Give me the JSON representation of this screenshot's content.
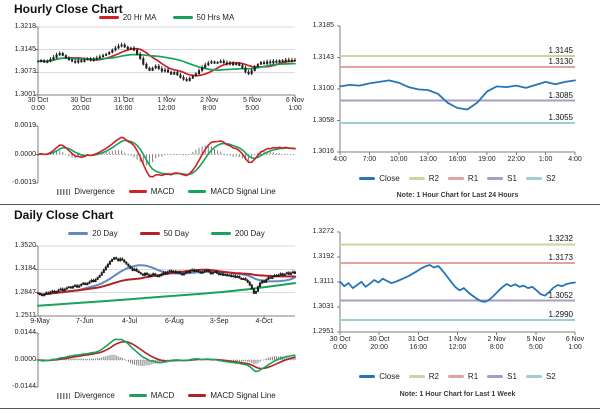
{
  "texts": {
    "hourly_title": "Hourly Close Chart",
    "daily_title": "Daily Close Chart"
  },
  "colors": {
    "red": "#cf2128",
    "green": "#17a35b",
    "steel_blue": "#6189bd",
    "dark_red": "#b42025",
    "close_blue": "#2575b8",
    "r2_green": "#c6d7a2",
    "r1_pink": "#e0a3a0",
    "s1_purple": "#a79fc0",
    "s2_cyan": "#9ccdd8",
    "divergence_gray": "#7f7f7f",
    "candle_black": "#1c1c1c"
  },
  "chart_data": [
    {
      "id": "hourly_main",
      "type": "candlestick",
      "title": "Hourly Close Chart",
      "y_ticks": [
        "1.3218",
        "1.3145",
        "1.3073",
        "1.3001"
      ],
      "x_tick_labels": [
        [
          "30 Oct",
          "0:00"
        ],
        [
          "30 Oct",
          "20:00"
        ],
        [
          "31 Oct",
          "16:00"
        ],
        [
          "1 Nov",
          "12:00"
        ],
        [
          "2 Nov",
          "8:00"
        ],
        [
          "5 Nov",
          "5:00"
        ],
        [
          "6 Nov",
          "1:00"
        ]
      ],
      "ylim": [
        1.3001,
        1.3218
      ],
      "wick": 0.0012,
      "close": [
        1.3108,
        1.3112,
        1.3106,
        1.311,
        1.3116,
        1.3122,
        1.313,
        1.3135,
        1.3128,
        1.312,
        1.3114,
        1.311,
        1.3106,
        1.3112,
        1.3108,
        1.3114,
        1.3118,
        1.3112,
        1.3116,
        1.312,
        1.3124,
        1.3128,
        1.3132,
        1.3138,
        1.3145,
        1.3152,
        1.3158,
        1.3162,
        1.3155,
        1.3148,
        1.3152,
        1.3145,
        1.3132,
        1.3118,
        1.31,
        1.3088,
        1.308,
        1.3088,
        1.3094,
        1.3086,
        1.3078,
        1.3082,
        1.3075,
        1.3068,
        1.3074,
        1.3066,
        1.3058,
        1.3052,
        1.3048,
        1.3055,
        1.3062,
        1.307,
        1.308,
        1.309,
        1.3098,
        1.3104,
        1.3108,
        1.3103,
        1.3106,
        1.311,
        1.3105,
        1.31,
        1.3104,
        1.3098,
        1.3102,
        1.3096,
        1.3088,
        1.3075,
        1.307,
        1.308,
        1.3092,
        1.31,
        1.3106,
        1.3102,
        1.3108,
        1.3104,
        1.311,
        1.3106,
        1.3112,
        1.3108,
        1.3114,
        1.311,
        1.3113,
        1.3112
      ],
      "ma": [
        {
          "name": "20 Hr MA",
          "window": 10,
          "color": "#cf2128"
        },
        {
          "name": "50 Hrs MA",
          "window": 25,
          "color": "#17a35b"
        }
      ],
      "legend": [
        {
          "label": "20 Hr MA",
          "color": "#cf2128"
        },
        {
          "label": "50 Hrs MA",
          "color": "#17a35b"
        }
      ]
    },
    {
      "id": "hourly_macd",
      "type": "macd",
      "source": "hourly_main",
      "y_ticks": [
        "0.0019",
        "0.0000",
        "-0.0019"
      ],
      "fast": 6,
      "slow": 13,
      "signal": 5,
      "macd_color": "#cf2128",
      "signal_color": "#17a35b",
      "divergence_color": "#7f7f7f",
      "legend": [
        {
          "label": "Divergence",
          "color": "#7f7f7f",
          "swatch": "bars"
        },
        {
          "label": "MACD",
          "color": "#cf2128"
        },
        {
          "label": "MACD Signal Line",
          "color": "#17a35b"
        }
      ]
    },
    {
      "id": "hourly_sr",
      "type": "line",
      "y_ticks": [
        "1.3185",
        "1.3143",
        "1.3100",
        "1.3058",
        "1.3016"
      ],
      "ylim": [
        1.3016,
        1.3185
      ],
      "x_tick_labels": [
        "4:00",
        "7:00",
        "10:00",
        "13:00",
        "16:00",
        "19:00",
        "22:00",
        "1:00",
        "4:00"
      ],
      "close_color": "#2575b8",
      "close": [
        1.3104,
        1.3106,
        1.3105,
        1.3108,
        1.311,
        1.3112,
        1.3109,
        1.3103,
        1.31,
        1.3099,
        1.3094,
        1.3082,
        1.3075,
        1.3073,
        1.3082,
        1.3097,
        1.3104,
        1.3103,
        1.3105,
        1.3102,
        1.3106,
        1.311,
        1.3107,
        1.311,
        1.3112
      ],
      "levels": [
        {
          "name": "R2",
          "value": 1.3145,
          "label": "1.3145",
          "color": "#c6d7a2"
        },
        {
          "name": "R1",
          "value": 1.313,
          "label": "1.3130",
          "color": "#e0a3a0"
        },
        {
          "name": "S1",
          "value": 1.3085,
          "label": "1.3085",
          "color": "#a79fc0"
        },
        {
          "name": "S2",
          "value": 1.3055,
          "label": "1.3055",
          "color": "#9ccdd8"
        }
      ],
      "legend": [
        {
          "label": "Close",
          "color": "#2575b8"
        },
        {
          "label": "R2",
          "color": "#c6d7a2"
        },
        {
          "label": "R1",
          "color": "#e0a3a0"
        },
        {
          "label": "S1",
          "color": "#a79fc0"
        },
        {
          "label": "S2",
          "color": "#9ccdd8"
        }
      ],
      "note": "Note: 1 Hour Chart for Last 24 Hours"
    },
    {
      "id": "daily_main",
      "type": "candlestick",
      "title": "Daily Close Chart",
      "y_ticks": [
        "1.3520",
        "1.3184",
        "1.2847",
        "1.2511"
      ],
      "x_tick_labels": [
        "9-May",
        "7-Jun",
        "4-Jul",
        "6-Aug",
        "3-Sep",
        "4-Oct"
      ],
      "ylim": [
        1.2511,
        1.352
      ],
      "wick": 0.0032,
      "close": [
        1.284,
        1.282,
        1.2805,
        1.2825,
        1.285,
        1.2835,
        1.286,
        1.2875,
        1.2855,
        1.287,
        1.289,
        1.2905,
        1.288,
        1.29,
        1.292,
        1.2935,
        1.2915,
        1.294,
        1.2955,
        1.293,
        1.295,
        1.297,
        1.299,
        1.2965,
        1.2985,
        1.3005,
        1.303,
        1.301,
        1.304,
        1.307,
        1.31,
        1.314,
        1.318,
        1.322,
        1.326,
        1.33,
        1.333,
        1.3355,
        1.3335,
        1.331,
        1.334,
        1.332,
        1.329,
        1.326,
        1.323,
        1.32,
        1.317,
        1.319,
        1.316,
        1.314,
        1.312,
        1.31,
        1.313,
        1.311,
        1.3085,
        1.3105,
        1.3125,
        1.31,
        1.308,
        1.3095,
        1.3115,
        1.314,
        1.312,
        1.315,
        1.317,
        1.3145,
        1.316,
        1.3135,
        1.315,
        1.3125,
        1.3105,
        1.313,
        1.3155,
        1.314,
        1.3165,
        1.318,
        1.3155,
        1.317,
        1.315,
        1.313,
        1.3145,
        1.316,
        1.3175,
        1.315,
        1.312,
        1.314,
        1.3155,
        1.313,
        1.311,
        1.3125,
        1.31,
        1.3115,
        1.309,
        1.3105,
        1.308,
        1.3095,
        1.307,
        1.3085,
        1.306,
        1.304,
        1.3055,
        1.303,
        1.3,
        1.296,
        1.2905,
        1.284,
        1.287,
        1.294,
        1.299,
        1.302,
        1.3,
        1.304,
        1.307,
        1.3055,
        1.308,
        1.31,
        1.3085,
        1.3105,
        1.3125,
        1.31,
        1.312,
        1.314,
        1.3115,
        1.3135,
        1.315,
        1.3128
      ],
      "ma": [
        {
          "name": "20 Day",
          "window": 20,
          "color": "#6189bd"
        },
        {
          "name": "50 Day",
          "window": 50,
          "color": "#b42025"
        }
      ],
      "ma200": {
        "name": "200 Day",
        "color": "#17a35b",
        "values": [
          1.266,
          1.2682,
          1.2705,
          1.2729,
          1.2754,
          1.278,
          1.2806,
          1.2833,
          1.2861,
          1.2896,
          1.294,
          1.2985
        ]
      },
      "legend": [
        {
          "label": "20 Day",
          "color": "#6189bd"
        },
        {
          "label": "50 Day",
          "color": "#b42025"
        },
        {
          "label": "200 Day",
          "color": "#17a35b"
        }
      ]
    },
    {
      "id": "daily_macd",
      "type": "macd",
      "source": "daily_main",
      "y_ticks": [
        "0.0144",
        "0.0000",
        "-0.0144"
      ],
      "fast": 12,
      "slow": 26,
      "signal": 9,
      "macd_color": "#17a35b",
      "signal_color": "#b42025",
      "divergence_color": "#7f7f7f",
      "legend": [
        {
          "label": "Divergence",
          "color": "#7f7f7f",
          "swatch": "bars"
        },
        {
          "label": "MACD",
          "color": "#17a35b"
        },
        {
          "label": "MACD Signal Line",
          "color": "#b42025"
        }
      ]
    },
    {
      "id": "daily_sr",
      "type": "line",
      "y_ticks": [
        "1.3272",
        "1.3192",
        "1.3111",
        "1.3031",
        "1.2951"
      ],
      "ylim": [
        1.2951,
        1.3272
      ],
      "x_tick_labels": [
        [
          "30 Oct",
          "0:00"
        ],
        [
          "30 Oct",
          "20:00"
        ],
        [
          "31 Oct",
          "16:00"
        ],
        [
          "1 Nov",
          "12:00"
        ],
        [
          "2 Nov",
          "8:00"
        ],
        [
          "5 Nov",
          "5:00"
        ],
        [
          "6 Nov",
          "1:00"
        ]
      ],
      "close_color": "#2575b8",
      "close": [
        1.3112,
        1.3098,
        1.3108,
        1.3092,
        1.3102,
        1.3112,
        1.3096,
        1.3106,
        1.3118,
        1.311,
        1.3122,
        1.3115,
        1.3108,
        1.3112,
        1.3118,
        1.3124,
        1.313,
        1.3138,
        1.3146,
        1.3155,
        1.3162,
        1.3166,
        1.3158,
        1.3163,
        1.3148,
        1.313,
        1.3112,
        1.3095,
        1.3085,
        1.3092,
        1.3078,
        1.3068,
        1.3058,
        1.305,
        1.3048,
        1.3055,
        1.3068,
        1.3082,
        1.3095,
        1.3105,
        1.3098,
        1.3104,
        1.3096,
        1.31,
        1.3092,
        1.3096,
        1.3085,
        1.3072,
        1.3068,
        1.308,
        1.3094,
        1.3102,
        1.3098,
        1.3105,
        1.3108,
        1.311
      ],
      "levels": [
        {
          "name": "R2",
          "value": 1.3232,
          "label": "1.3232",
          "color": "#c6d7a2"
        },
        {
          "name": "R1",
          "value": 1.3173,
          "label": "1.3173",
          "color": "#e0a3a0"
        },
        {
          "name": "S1",
          "value": 1.3052,
          "label": "1.3052",
          "color": "#a79fc0"
        },
        {
          "name": "S2",
          "value": 1.299,
          "label": "1.2990",
          "color": "#9ccdd8"
        }
      ],
      "legend": [
        {
          "label": "Close",
          "color": "#2575b8"
        },
        {
          "label": "R2",
          "color": "#c6d7a2"
        },
        {
          "label": "R1",
          "color": "#e0a3a0"
        },
        {
          "label": "S1",
          "color": "#a79fc0"
        },
        {
          "label": "S2",
          "color": "#9ccdd8"
        }
      ],
      "note": "Note: 1 Hour Chart for Last 1 Week"
    }
  ]
}
